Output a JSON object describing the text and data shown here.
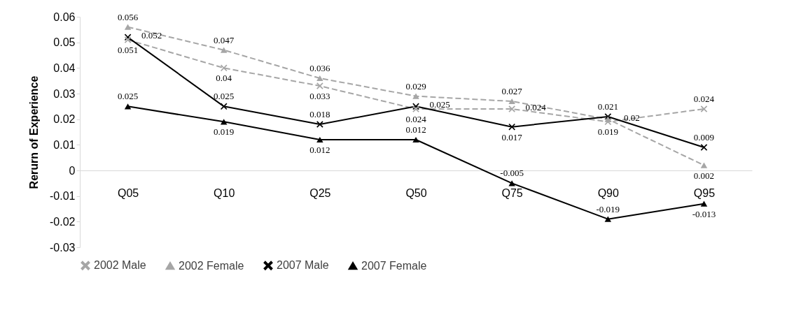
{
  "chart_data": {
    "type": "line",
    "ylabel": "Rerurn of Experience",
    "categories": [
      "Q05",
      "Q10",
      "Q25",
      "Q50",
      "Q75",
      "Q90",
      "Q95"
    ],
    "ylim": [
      -0.03,
      0.06
    ],
    "yticks": [
      -0.03,
      -0.02,
      -0.01,
      0,
      0.01,
      0.02,
      0.03,
      0.04,
      0.05,
      0.06
    ],
    "grid": false,
    "legend": "bottom",
    "data_labels": true,
    "series": [
      {
        "name": "2002 Male",
        "color": "#a6a6a6",
        "line_style": "dashed",
        "marker": "cross",
        "values": [
          0.051,
          0.04,
          0.033,
          0.024,
          0.024,
          0.019,
          0.024
        ]
      },
      {
        "name": "2002 Female",
        "color": "#a6a6a6",
        "line_style": "dashed",
        "marker": "triangle",
        "values": [
          0.056,
          0.047,
          0.036,
          0.029,
          0.027,
          0.02,
          0.002
        ]
      },
      {
        "name": "2007 Male",
        "color": "#000000",
        "line_style": "solid",
        "marker": "cross",
        "values": [
          0.052,
          0.025,
          0.018,
          0.025,
          0.017,
          0.021,
          0.009
        ]
      },
      {
        "name": "2007 Female",
        "color": "#000000",
        "line_style": "solid",
        "marker": "triangle",
        "values": [
          0.025,
          0.019,
          0.012,
          0.012,
          -0.005,
          -0.019,
          -0.013
        ]
      }
    ]
  }
}
